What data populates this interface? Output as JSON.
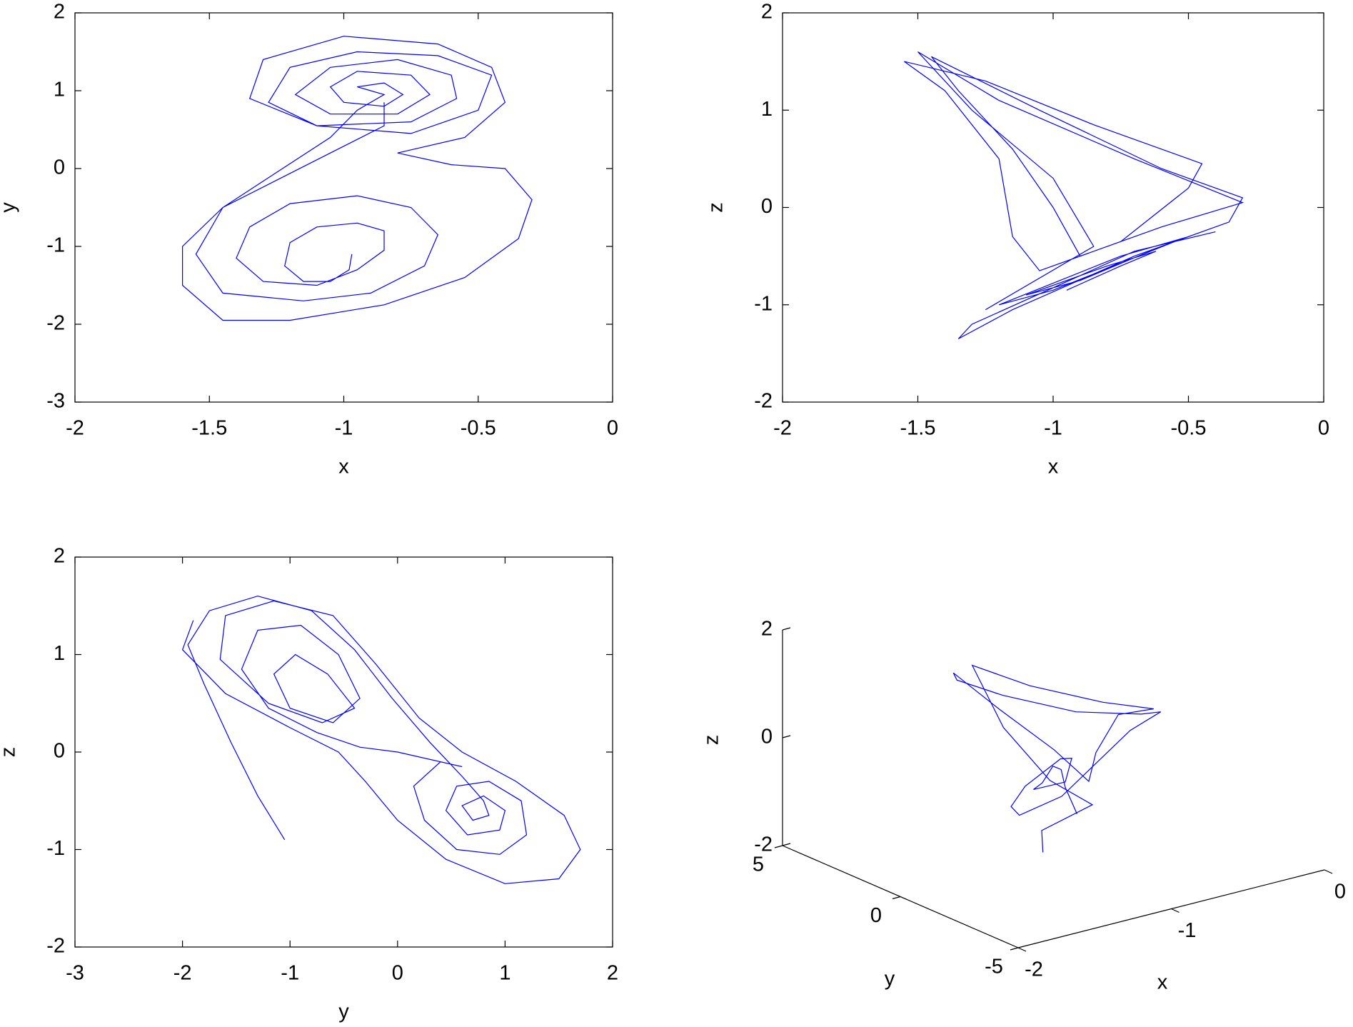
{
  "chart_data": [
    {
      "type": "line",
      "xlabel": "x",
      "ylabel": "y",
      "xlim": [
        -2,
        0
      ],
      "ylim": [
        -3,
        2
      ],
      "xticks": [
        -2,
        -1.5,
        -1,
        -0.5,
        0
      ],
      "yticks": [
        -3,
        -2,
        -1,
        0,
        1,
        2
      ],
      "series": [
        {
          "color": "#0000ff",
          "x": [
            -0.97,
            -0.98,
            -1.05,
            -1.15,
            -1.22,
            -1.2,
            -1.1,
            -0.95,
            -0.85,
            -0.85,
            -0.95,
            -1.1,
            -1.3,
            -1.4,
            -1.35,
            -1.2,
            -0.95,
            -0.75,
            -0.65,
            -0.7,
            -0.9,
            -1.15,
            -1.45,
            -1.55,
            -1.45,
            -1.25,
            -1.05,
            -0.95,
            -0.85,
            -0.9,
            -0.95,
            -0.85,
            -0.78,
            -0.85,
            -1.0,
            -1.05,
            -0.95,
            -0.75,
            -0.68,
            -0.8,
            -1.05,
            -1.18,
            -1.05,
            -0.8,
            -0.6,
            -0.58,
            -0.75,
            -1.1,
            -1.28,
            -1.2,
            -0.95,
            -0.65,
            -0.45,
            -0.5,
            -0.75,
            -1.1,
            -1.35,
            -1.3,
            -1.0,
            -0.65,
            -0.45,
            -0.4,
            -0.55,
            -0.8,
            -0.6,
            -0.4,
            -0.3,
            -0.35,
            -0.55,
            -0.85,
            -1.2,
            -1.45,
            -1.6,
            -1.6,
            -1.45,
            -1.25,
            -1.05,
            -0.85,
            -0.85
          ],
          "values": [
            -1.1,
            -1.3,
            -1.45,
            -1.45,
            -1.25,
            -0.95,
            -0.75,
            -0.7,
            -0.8,
            -1.05,
            -1.3,
            -1.5,
            -1.45,
            -1.15,
            -0.75,
            -0.45,
            -0.35,
            -0.5,
            -0.85,
            -1.25,
            -1.6,
            -1.7,
            -1.6,
            -1.1,
            -0.5,
            -0.05,
            0.4,
            0.75,
            0.95,
            1.0,
            1.05,
            1.1,
            0.95,
            0.8,
            0.85,
            1.05,
            1.25,
            1.2,
            0.95,
            0.7,
            0.7,
            0.95,
            1.3,
            1.4,
            1.2,
            0.9,
            0.6,
            0.55,
            0.85,
            1.3,
            1.5,
            1.45,
            1.2,
            0.75,
            0.45,
            0.55,
            0.9,
            1.4,
            1.7,
            1.6,
            1.3,
            0.85,
            0.4,
            0.2,
            0.05,
            0.0,
            -0.4,
            -0.9,
            -1.4,
            -1.75,
            -1.95,
            -1.95,
            -1.5,
            -1.0,
            -0.5,
            -0.15,
            0.2,
            0.55,
            0.85
          ]
        }
      ]
    },
    {
      "type": "line",
      "xlabel": "x",
      "ylabel": "z",
      "xlim": [
        -2,
        0
      ],
      "ylim": [
        -2,
        2
      ],
      "xticks": [
        -2,
        -1.5,
        -1,
        -0.5,
        0
      ],
      "yticks": [
        -2,
        -1,
        0,
        1,
        2
      ],
      "series": [
        {
          "color": "#0000ff",
          "x": [
            -0.95,
            -0.75,
            -0.62,
            -0.8,
            -1.1,
            -0.9,
            -0.6,
            -0.5,
            -0.75,
            -1.2,
            -1.0,
            -0.55,
            -0.4,
            -0.7,
            -1.3,
            -1.35,
            -1.15,
            -0.7,
            -0.35,
            -0.3,
            -0.6,
            -1.05,
            -1.45,
            -1.35,
            -1.15,
            -1.0,
            -0.9,
            -0.75,
            -0.5,
            -0.45,
            -0.85,
            -1.25,
            -1.55,
            -1.4,
            -1.2,
            -1.15,
            -1.05,
            -0.6,
            -0.3,
            -0.7,
            -1.2,
            -1.5,
            -1.3,
            -1.0,
            -0.85,
            -1.25
          ],
          "values": [
            -0.85,
            -0.6,
            -0.45,
            -0.6,
            -0.9,
            -0.75,
            -0.4,
            -0.3,
            -0.5,
            -1.0,
            -0.85,
            -0.35,
            -0.25,
            -0.45,
            -1.2,
            -1.35,
            -1.05,
            -0.5,
            -0.15,
            0.1,
            0.4,
            1.0,
            1.55,
            1.2,
            0.6,
            0.0,
            -0.5,
            -0.35,
            0.2,
            0.45,
            0.85,
            1.3,
            1.5,
            1.2,
            0.5,
            -0.3,
            -0.65,
            -0.2,
            0.05,
            0.5,
            1.1,
            1.6,
            1.0,
            0.3,
            -0.4,
            -1.05
          ]
        }
      ]
    },
    {
      "type": "line",
      "xlabel": "y",
      "ylabel": "z",
      "xlim": [
        -3,
        2
      ],
      "ylim": [
        -2,
        2
      ],
      "xticks": [
        -3,
        -2,
        -1,
        0,
        1,
        2
      ],
      "yticks": [
        -2,
        -1,
        0,
        1,
        2
      ],
      "series": [
        {
          "color": "#0000ff",
          "x": [
            -1.05,
            -1.3,
            -1.55,
            -1.8,
            -1.95,
            -1.75,
            -1.3,
            -0.8,
            -0.4,
            -0.05,
            0.3,
            0.6,
            0.8,
            0.85,
            0.7,
            0.6,
            0.8,
            1.0,
            0.95,
            0.65,
            0.45,
            0.55,
            0.85,
            1.15,
            1.2,
            0.95,
            0.55,
            0.25,
            0.15,
            0.4,
            0.6,
            0.0,
            -0.35,
            -0.75,
            -1.2,
            -1.45,
            -1.3,
            -0.9,
            -0.55,
            -0.35,
            -0.6,
            -1.0,
            -1.15,
            -0.95,
            -0.65,
            -0.4,
            -0.7,
            -1.2,
            -1.65,
            -1.6,
            -1.15,
            -0.6,
            -0.2,
            0.2,
            0.6,
            1.1,
            1.55,
            1.7,
            1.5,
            1.0,
            0.45,
            0.0,
            -0.3,
            -0.55,
            -1.0,
            -1.6,
            -2.0,
            -1.9
          ],
          "values": [
            -0.9,
            -0.45,
            0.1,
            0.7,
            1.1,
            1.45,
            1.6,
            1.45,
            1.05,
            0.55,
            0.1,
            -0.25,
            -0.5,
            -0.65,
            -0.7,
            -0.55,
            -0.45,
            -0.6,
            -0.8,
            -0.85,
            -0.6,
            -0.35,
            -0.3,
            -0.5,
            -0.85,
            -1.05,
            -1.0,
            -0.7,
            -0.35,
            -0.1,
            -0.15,
            0.0,
            0.05,
            0.2,
            0.45,
            0.85,
            1.25,
            1.3,
            1.0,
            0.55,
            0.3,
            0.45,
            0.8,
            1.0,
            0.8,
            0.45,
            0.3,
            0.5,
            0.95,
            1.4,
            1.55,
            1.4,
            0.9,
            0.35,
            0.0,
            -0.3,
            -0.65,
            -1.0,
            -1.3,
            -1.35,
            -1.1,
            -0.7,
            -0.3,
            0.0,
            0.25,
            0.6,
            1.05,
            1.35
          ]
        }
      ]
    },
    {
      "type": "line3d",
      "xlabel": "x",
      "ylabel": "y",
      "zlabel": "z",
      "xlim": [
        -2,
        0
      ],
      "ylim": [
        -5,
        5
      ],
      "zlim": [
        -2,
        2
      ],
      "xticks": [
        -2,
        -1,
        0
      ],
      "yticks": [
        -5,
        0,
        5
      ],
      "zticks": [
        -2,
        0,
        2
      ],
      "series": [
        {
          "color": "#0000ff",
          "x": [
            -1.0,
            -1.0,
            -0.95,
            -0.9,
            -0.85,
            -0.95,
            -1.1,
            -1.0,
            -0.85,
            -0.8,
            -1.0,
            -1.2,
            -1.3,
            -1.1,
            -0.8,
            -0.5,
            -0.3,
            -0.35,
            -0.7,
            -1.1,
            -1.4,
            -1.5,
            -1.35,
            -1.15,
            -1.0,
            -0.8,
            -0.5,
            -0.3,
            -0.6,
            -1.0,
            -1.3,
            -1.25,
            -1.1,
            -0.9,
            -1.2,
            -1.3
          ],
          "y": [
            -1,
            -0.5,
            0,
            0.5,
            1,
            0.8,
            0.2,
            -0.5,
            0.2,
            1,
            1.2,
            0.5,
            -0.5,
            -1,
            -0.5,
            0,
            0,
            0.5,
            1,
            1.5,
            1.5,
            1,
            0,
            -1,
            -1.5,
            -0.5,
            0.5,
            0.3,
            0.5,
            1,
            1.5,
            0.5,
            -0.5,
            -1,
            -0.8,
            -1.5
          ],
          "z": [
            -1.0,
            -0.6,
            -0.4,
            -0.5,
            -0.6,
            -0.8,
            -0.7,
            -0.5,
            -0.3,
            -0.5,
            -0.9,
            -1.0,
            -0.9,
            -0.6,
            -0.3,
            0.0,
            0.2,
            0.1,
            0.3,
            0.8,
            1.3,
            1.6,
            1.0,
            0.3,
            -0.3,
            -0.1,
            0.2,
            0.2,
            0.5,
            1.0,
            1.5,
            0.5,
            -0.4,
            -0.9,
            -1.2,
            -1.4
          ]
        }
      ]
    }
  ]
}
